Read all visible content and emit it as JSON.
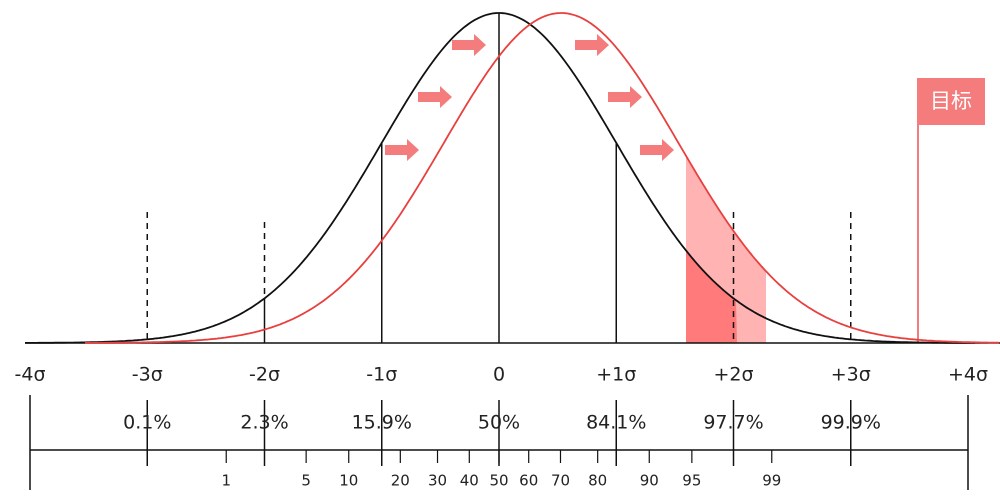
{
  "sigma_labels": [
    "-4σ",
    "-3σ",
    "-2σ",
    "-1σ",
    "0",
    "+1σ",
    "+2σ",
    "+3σ",
    "+4σ"
  ],
  "percent_labels": [
    "0.1%",
    "2.3%",
    "15.9%",
    "50%",
    "84.1%",
    "97.7%",
    "99.9%"
  ],
  "percentiles": [
    1,
    5,
    10,
    20,
    30,
    40,
    50,
    60,
    70,
    80,
    90,
    95,
    99
  ],
  "flag": "目标"
}
